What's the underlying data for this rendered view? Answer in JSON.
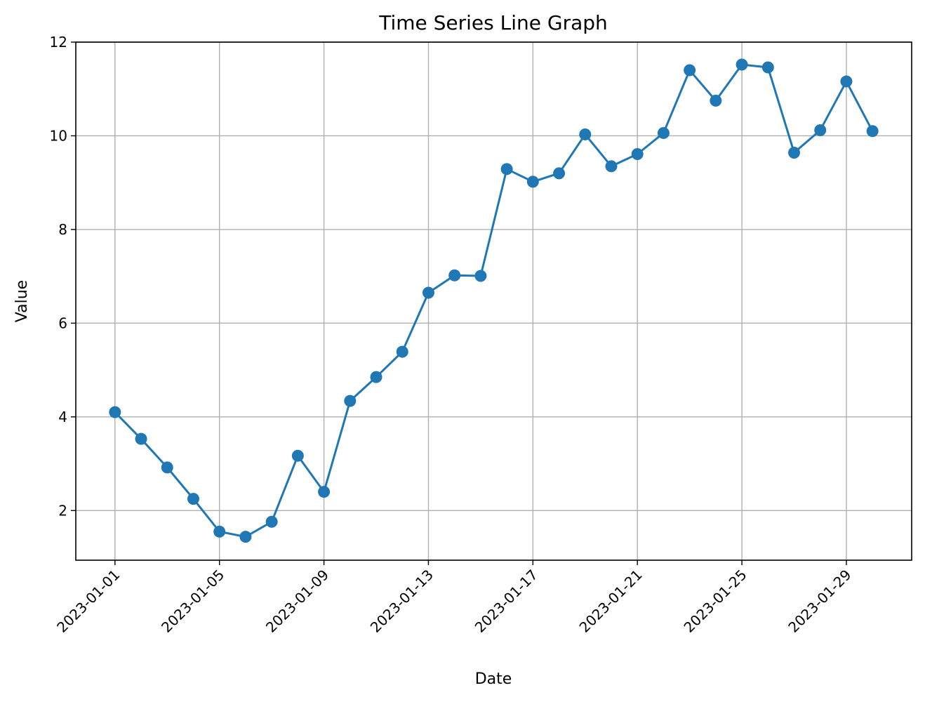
{
  "colors": {
    "series": "#1f77b4",
    "grid": "#b0b0b0"
  },
  "chart_data": {
    "type": "line",
    "title": "Time Series Line Graph",
    "xlabel": "Date",
    "ylabel": "Value",
    "grid": true,
    "marker": "circle",
    "xlim": [
      "2022-12-30 12:00",
      "2023-01-31 12:00"
    ],
    "ylim": [
      0.94,
      12.0
    ],
    "yticks": [
      2,
      4,
      6,
      8,
      10,
      12
    ],
    "xticks": [
      "2023-01-01",
      "2023-01-05",
      "2023-01-09",
      "2023-01-13",
      "2023-01-17",
      "2023-01-21",
      "2023-01-25",
      "2023-01-29"
    ],
    "series": [
      {
        "x": [
          "2023-01-01",
          "2023-01-02",
          "2023-01-03",
          "2023-01-04",
          "2023-01-05",
          "2023-01-06",
          "2023-01-07",
          "2023-01-08",
          "2023-01-09",
          "2023-01-10",
          "2023-01-11",
          "2023-01-12",
          "2023-01-13",
          "2023-01-14",
          "2023-01-15",
          "2023-01-16",
          "2023-01-17",
          "2023-01-18",
          "2023-01-19",
          "2023-01-20",
          "2023-01-21",
          "2023-01-22",
          "2023-01-23",
          "2023-01-24",
          "2023-01-25",
          "2023-01-26",
          "2023-01-27",
          "2023-01-28",
          "2023-01-29",
          "2023-01-30"
        ],
        "values": [
          4.1,
          3.53,
          2.92,
          2.25,
          1.55,
          1.44,
          1.76,
          3.17,
          2.4,
          4.34,
          4.85,
          5.39,
          6.65,
          7.02,
          7.01,
          9.29,
          9.02,
          9.2,
          10.03,
          9.35,
          9.61,
          10.06,
          11.4,
          10.75,
          11.52,
          11.46,
          9.64,
          10.12,
          11.16,
          10.1
        ]
      }
    ]
  }
}
